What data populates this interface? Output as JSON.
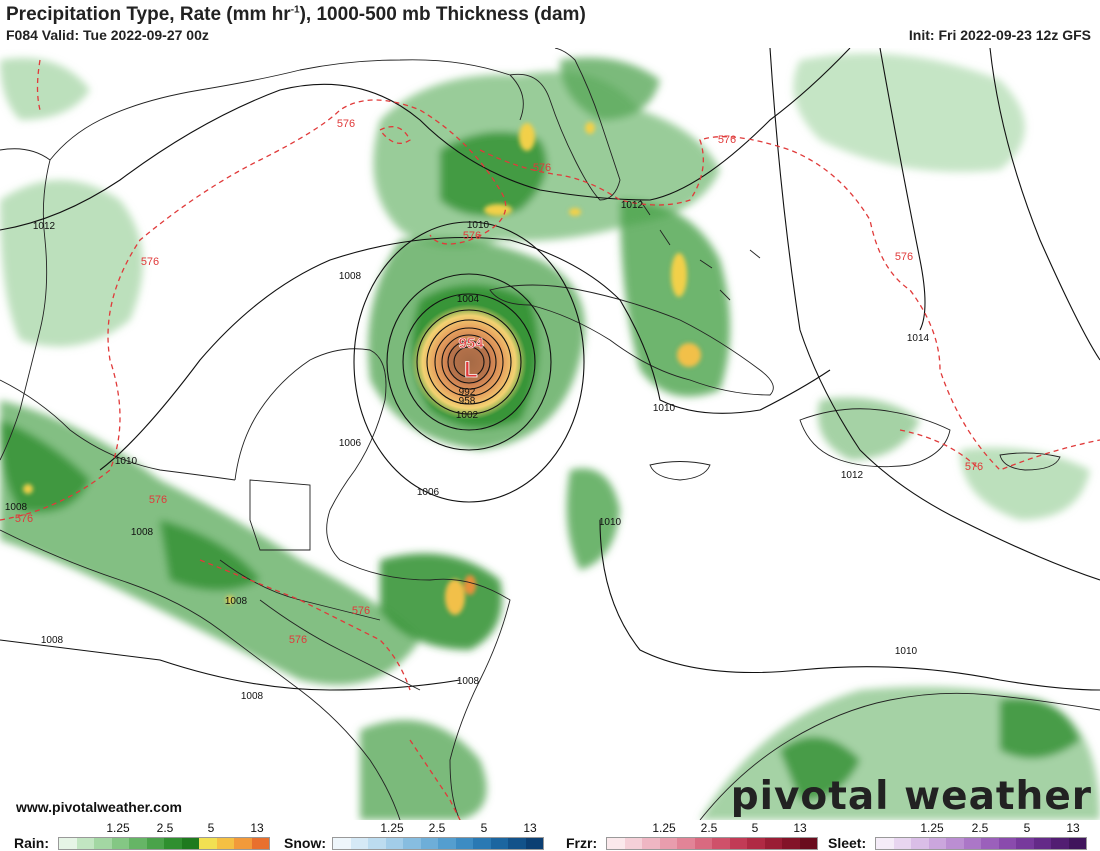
{
  "header": {
    "title": "Precipitation Type, Rate (mm hr",
    "title_sup": "-1",
    "title_rest": "), 1000-500 mb Thickness (dam)",
    "valid": "F084 Valid: Tue 2022-09-27 00z",
    "init": "Init: Fri 2022-09-23 12z GFS"
  },
  "map": {
    "low_label": "L",
    "low_pressure": "954",
    "inner_isobars": [
      "992",
      "958",
      "1002",
      "1004"
    ],
    "isobar_labels": [
      "1012",
      "1010",
      "1012",
      "1008",
      "1006",
      "1006",
      "1010",
      "1008",
      "1008",
      "1008",
      "1008",
      "1008",
      "1010",
      "1012",
      "1010",
      "1010",
      "1014"
    ],
    "thickness_labels": [
      "576",
      "576",
      "576",
      "576",
      "576",
      "576",
      "576",
      "576",
      "576",
      "576",
      "576"
    ]
  },
  "footer": {
    "website": "www.pivotalweather.com",
    "brand": "pivotal weather"
  },
  "legend": {
    "ticks": [
      "1.25",
      "2.5",
      "5",
      "13"
    ],
    "rain": {
      "label": "Rain:",
      "colors": [
        "#e6f5e6",
        "#c2e6c2",
        "#a3d7a3",
        "#84c784",
        "#66b566",
        "#4aa34a",
        "#2f8f2f",
        "#1e7a1e",
        "#f2e052",
        "#f5c043",
        "#f29a3a",
        "#e8702e"
      ]
    },
    "snow": {
      "label": "Snow:",
      "colors": [
        "#eef6fb",
        "#d5e9f6",
        "#bcdcf0",
        "#a2cde9",
        "#87bde0",
        "#6eaed8",
        "#549ecf",
        "#3d8cc3",
        "#2a79b3",
        "#1c66a0",
        "#12528a",
        "#0b3f73"
      ]
    },
    "frzr": {
      "label": "Frzr:",
      "colors": [
        "#fbe9ec",
        "#f5d0d8",
        "#efb6c3",
        "#e99dad",
        "#e28497",
        "#d96a80",
        "#cf516a",
        "#c23b56",
        "#b02a44",
        "#9a1d35",
        "#831328",
        "#6a0c1e"
      ]
    },
    "sleet": {
      "label": "Sleet:",
      "colors": [
        "#f5ecf8",
        "#e8d5f0",
        "#dabee7",
        "#cba6dd",
        "#bb8ed2",
        "#ab77c7",
        "#9b60bb",
        "#8a4bad",
        "#77399c",
        "#642a88",
        "#521e72",
        "#40155c"
      ]
    }
  }
}
